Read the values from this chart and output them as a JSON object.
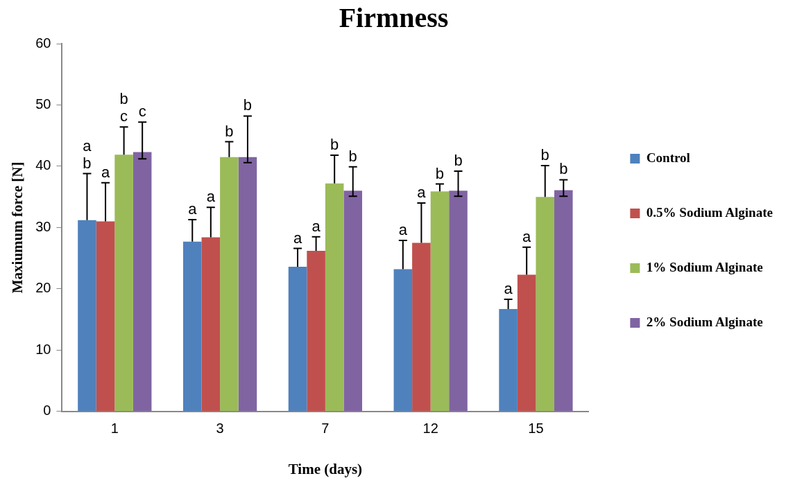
{
  "chart_data": {
    "type": "bar",
    "title": "Firmness",
    "xlabel": "Time (days)",
    "ylabel": "Maxiumum force [N]",
    "categories": [
      "1",
      "3",
      "7",
      "12",
      "15"
    ],
    "series": [
      {
        "name": "Control",
        "color": "#4f81bd",
        "values": [
          31.2,
          27.7,
          23.6,
          23.2,
          16.7
        ],
        "errors": [
          [
            31.2,
            38.8
          ],
          [
            27.7,
            31.3
          ],
          [
            23.6,
            26.6
          ],
          [
            23.2,
            27.9
          ],
          [
            16.7,
            18.3
          ]
        ],
        "value_labels": [
          "a\nb",
          "a",
          "a",
          "a",
          "a"
        ]
      },
      {
        "name": "0.5% Sodium Alginate",
        "color": "#c0504d",
        "values": [
          31.0,
          28.4,
          26.2,
          27.5,
          22.3
        ],
        "errors": [
          [
            31.0,
            37.3
          ],
          [
            28.4,
            33.3
          ],
          [
            26.2,
            28.5
          ],
          [
            27.5,
            34.0
          ],
          [
            22.3,
            26.8
          ]
        ],
        "value_labels": [
          "a",
          "a",
          "a",
          "a",
          "a"
        ]
      },
      {
        "name": "1% Sodium Alginate",
        "color": "#9bbb59",
        "values": [
          41.9,
          41.5,
          37.2,
          35.9,
          35.0
        ],
        "errors": [
          [
            41.9,
            46.4
          ],
          [
            41.5,
            44.0
          ],
          [
            37.2,
            41.8
          ],
          [
            35.9,
            37.1
          ],
          [
            35.0,
            40.1
          ]
        ],
        "value_labels": [
          "b\nc",
          "b",
          "b",
          "b",
          "b"
        ]
      },
      {
        "name": "2% Sodium Alginate",
        "color": "#8064a2",
        "values": [
          42.3,
          41.5,
          36.0,
          36.0,
          36.1
        ],
        "errors": [
          [
            41.2,
            47.2
          ],
          [
            40.6,
            48.2
          ],
          [
            35.1,
            39.9
          ],
          [
            35.1,
            39.2
          ],
          [
            35.1,
            37.8
          ]
        ],
        "value_labels": [
          "c",
          "b",
          "b",
          "b",
          "b"
        ]
      }
    ],
    "ylim": [
      0,
      60
    ],
    "yticks": [
      0,
      10,
      20,
      30,
      40,
      50,
      60
    ],
    "grid": false,
    "legend": "right"
  }
}
